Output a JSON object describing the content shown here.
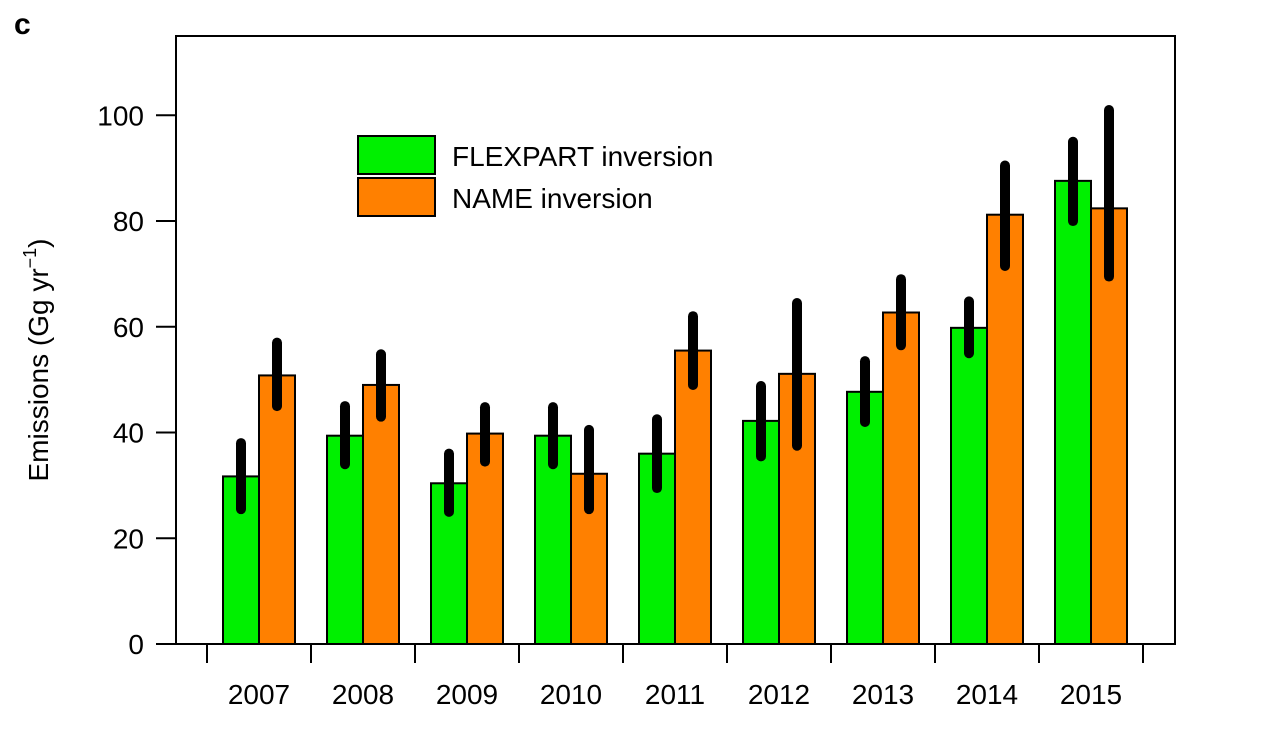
{
  "panel_label": "c",
  "chart_data": {
    "type": "bar",
    "categories": [
      "2007",
      "2008",
      "2009",
      "2010",
      "2011",
      "2012",
      "2013",
      "2014",
      "2015"
    ],
    "series": [
      {
        "name": "FLEXPART inversion",
        "color": "#00f000",
        "values": [
          31.7,
          39.4,
          30.4,
          39.4,
          36.0,
          42.2,
          47.7,
          59.8,
          87.6
        ],
        "error_low": [
          25.5,
          34.0,
          25.0,
          34.0,
          29.5,
          35.5,
          42.0,
          55.0,
          80.0
        ],
        "error_high": [
          38.0,
          45.0,
          36.0,
          44.8,
          42.5,
          48.8,
          53.5,
          64.8,
          95.0
        ]
      },
      {
        "name": "NAME inversion",
        "color": "#ff8000",
        "values": [
          50.8,
          49.0,
          39.8,
          32.2,
          55.5,
          51.1,
          62.7,
          81.2,
          82.4
        ],
        "error_low": [
          45.0,
          43.0,
          34.5,
          25.5,
          49.0,
          37.5,
          56.5,
          71.5,
          69.5
        ],
        "error_high": [
          57.0,
          54.8,
          44.8,
          40.5,
          62.0,
          64.5,
          69.0,
          90.5,
          101.0
        ]
      }
    ],
    "ylabel": "Emissions (Gg yr",
    "ylabel_sup": "−1",
    "ylabel_close": ")",
    "ylim": [
      0,
      115
    ],
    "yticks": [
      0,
      20,
      40,
      60,
      80,
      100
    ],
    "legend_position": "top-left",
    "grid": false
  }
}
